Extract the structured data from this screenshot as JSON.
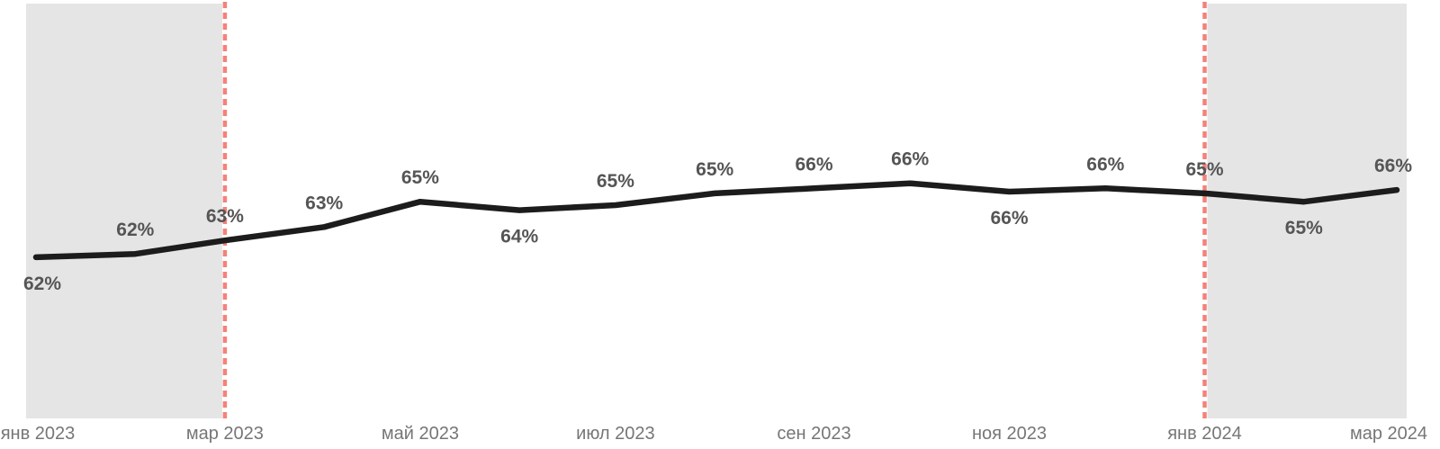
{
  "chart_data": {
    "type": "line",
    "title": "",
    "x_months": [
      "2023-01",
      "2023-02",
      "2023-03",
      "2023-04",
      "2023-05",
      "2023-06",
      "2023-07",
      "2023-08",
      "2023-09",
      "2023-10",
      "2023-11",
      "2023-12",
      "2024-01",
      "2024-02",
      "2024-03"
    ],
    "series": [
      {
        "name": "percentage-trend",
        "values": [
          61.6,
          61.8,
          62.6,
          63.4,
          64.9,
          64.4,
          64.7,
          65.4,
          65.7,
          66.0,
          65.5,
          65.7,
          65.4,
          64.9,
          65.6
        ],
        "point_labels": [
          "62%",
          "62%",
          "63%",
          "63%",
          "65%",
          "64%",
          "65%",
          "65%",
          "66%",
          "66%",
          "66%",
          "66%",
          "65%",
          "65%",
          "66%"
        ],
        "label_placement": [
          "below",
          "above",
          "above",
          "above",
          "above",
          "below",
          "above",
          "above",
          "above",
          "above",
          "below",
          "above",
          "above",
          "below",
          "above"
        ]
      }
    ],
    "x_tick_months": [
      "2023-01",
      "2023-03",
      "2023-05",
      "2023-07",
      "2023-09",
      "2023-11",
      "2024-01",
      "2024-03"
    ],
    "x_tick_labels": [
      "янв 2023",
      "мар 2023",
      "май 2023",
      "июл 2023",
      "сен 2023",
      "ноя 2023",
      "янв 2024",
      "мар 2024"
    ],
    "boundary_lines": [
      "2023-03",
      "2024-01"
    ],
    "highlight_regions": [
      {
        "from_month": "2023-01",
        "to_month": "2023-03"
      },
      {
        "from_month": "2024-01",
        "to_month": "2024-03"
      }
    ],
    "legend": "none",
    "grid": "off",
    "y_axis_visible": false,
    "colors": {
      "line": "#1c1c1c",
      "band": "#e5e5e5",
      "boundary": "#f4827a",
      "data_label": "#555555",
      "axis_label": "#767676",
      "background": "#ffffff"
    }
  }
}
